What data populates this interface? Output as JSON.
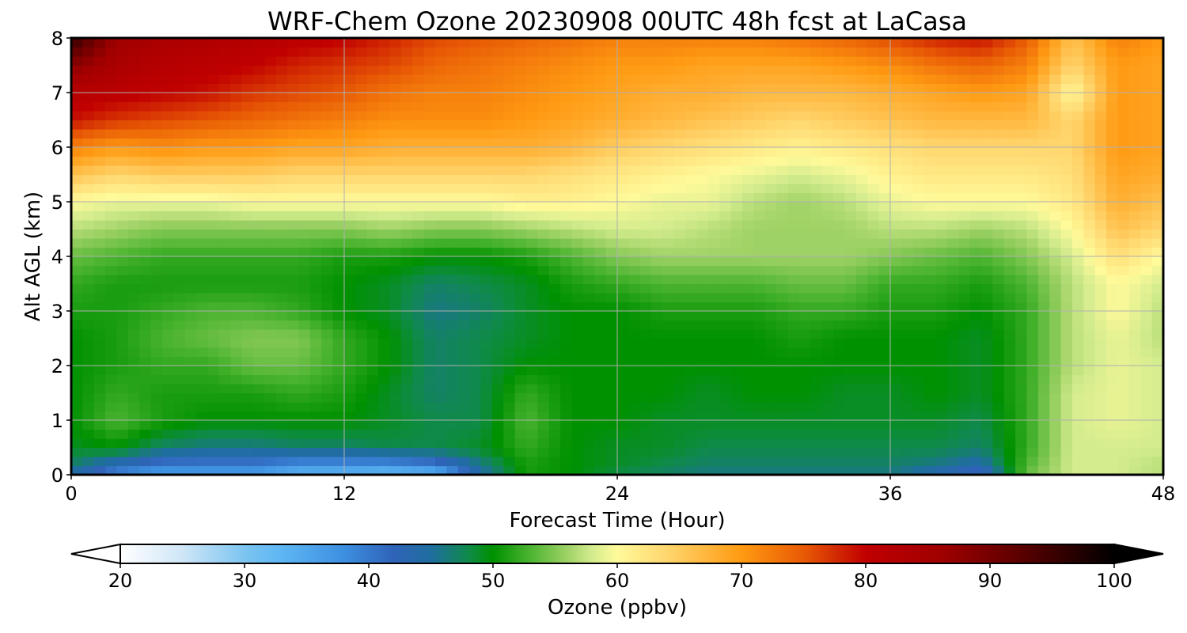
{
  "chart_data": {
    "type": "heatmap",
    "title": "WRF-Chem Ozone  20230908 00UTC 48h fcst at LaCasa",
    "xlabel": "Forecast Time (Hour)",
    "ylabel": "Alt AGL (km)",
    "xlim": [
      0,
      48
    ],
    "ylim": [
      0,
      8
    ],
    "xticks": [
      0,
      12,
      24,
      36,
      48
    ],
    "yticks": [
      0,
      1,
      2,
      3,
      4,
      5,
      6,
      7,
      8
    ],
    "grid": true,
    "colorbar": {
      "label": "Ozone  (ppbv)",
      "min": 20,
      "max": 100,
      "ticks": [
        20,
        30,
        40,
        50,
        60,
        70,
        80,
        90,
        100
      ],
      "extend": "both",
      "orientation": "horizontal",
      "location": "bottom",
      "colors": [
        {
          "v": 20,
          "c": "#ffffff"
        },
        {
          "v": 25,
          "c": "#cfe6f7"
        },
        {
          "v": 30,
          "c": "#7cc4f0"
        },
        {
          "v": 33,
          "c": "#5db6f3"
        },
        {
          "v": 38,
          "c": "#3d8fe0"
        },
        {
          "v": 42,
          "c": "#2f63b8"
        },
        {
          "v": 45,
          "c": "#1f6ea0"
        },
        {
          "v": 48,
          "c": "#0f8a4a"
        },
        {
          "v": 50,
          "c": "#009100"
        },
        {
          "v": 53,
          "c": "#4cb430"
        },
        {
          "v": 56,
          "c": "#9fd266"
        },
        {
          "v": 58,
          "c": "#d4ec8e"
        },
        {
          "v": 60,
          "c": "#fffa9a"
        },
        {
          "v": 64,
          "c": "#ffd66e"
        },
        {
          "v": 70,
          "c": "#ff9a12"
        },
        {
          "v": 75,
          "c": "#e85a05"
        },
        {
          "v": 80,
          "c": "#c00000"
        },
        {
          "v": 86,
          "c": "#a00000"
        },
        {
          "v": 92,
          "c": "#600000"
        },
        {
          "v": 100,
          "c": "#000000"
        }
      ]
    },
    "x": [
      0,
      2,
      4,
      6,
      8,
      10,
      12,
      14,
      16,
      18,
      20,
      22,
      24,
      26,
      28,
      30,
      32,
      34,
      36,
      38,
      40,
      42,
      44,
      46,
      48
    ],
    "y": [
      0,
      0.2,
      0.5,
      1,
      1.5,
      2,
      2.5,
      3,
      3.5,
      4,
      4.5,
      5,
      5.5,
      6,
      6.5,
      7,
      7.5,
      8
    ],
    "z": [
      [
        44,
        38,
        36,
        36,
        36,
        33,
        33,
        32,
        33,
        44,
        51,
        50,
        48,
        47,
        46,
        46,
        46,
        46,
        46,
        43,
        40,
        54,
        58,
        58,
        57
      ],
      [
        47,
        43,
        40,
        40,
        40,
        38,
        38,
        38,
        40,
        46,
        51,
        50,
        49,
        48,
        47,
        47,
        47,
        47,
        47,
        46,
        44,
        53,
        58,
        58,
        57
      ],
      [
        49,
        50,
        47,
        46,
        46,
        47,
        47,
        48,
        48,
        49,
        52,
        50,
        49,
        49,
        48,
        48,
        48,
        48,
        48,
        48,
        47,
        52,
        58,
        58,
        58
      ],
      [
        50,
        53,
        51,
        50,
        50,
        50,
        50,
        49,
        48,
        48,
        53,
        50,
        50,
        49,
        49,
        49,
        49,
        49,
        49,
        49,
        48,
        52,
        58,
        59,
        58
      ],
      [
        50,
        52,
        51,
        51,
        51,
        52,
        51,
        49,
        47,
        48,
        52,
        50,
        50,
        50,
        49,
        50,
        50,
        49,
        49,
        50,
        49,
        52,
        58,
        59,
        58
      ],
      [
        50,
        51,
        52,
        52,
        54,
        54,
        52,
        50,
        47,
        48,
        50,
        50,
        50,
        50,
        50,
        50,
        50,
        50,
        50,
        50,
        49,
        52,
        57,
        59,
        58
      ],
      [
        50,
        51,
        53,
        54,
        55,
        55,
        52,
        50,
        47,
        48,
        49,
        50,
        50,
        50,
        50,
        50,
        51,
        50,
        50,
        50,
        49,
        52,
        57,
        59,
        57
      ],
      [
        51,
        51,
        52,
        53,
        53,
        52,
        50,
        49,
        46,
        47,
        49,
        50,
        50,
        51,
        51,
        51,
        52,
        52,
        51,
        51,
        50,
        52,
        57,
        60,
        57
      ],
      [
        52,
        51,
        51,
        51,
        51,
        51,
        50,
        49,
        47,
        48,
        49,
        51,
        52,
        53,
        53,
        53,
        54,
        54,
        52,
        52,
        51,
        53,
        57,
        60,
        58
      ],
      [
        54,
        53,
        52,
        52,
        52,
        52,
        51,
        51,
        50,
        50,
        51,
        53,
        55,
        56,
        56,
        56,
        56,
        56,
        55,
        54,
        53,
        55,
        58,
        63,
        60
      ],
      [
        57,
        56,
        55,
        55,
        55,
        55,
        55,
        56,
        55,
        55,
        56,
        57,
        58,
        58,
        57,
        56,
        56,
        56,
        57,
        57,
        56,
        57,
        60,
        66,
        64
      ],
      [
        60,
        59,
        59,
        59,
        60,
        60,
        60,
        60,
        60,
        60,
        61,
        61,
        60,
        59,
        59,
        57,
        56,
        57,
        59,
        60,
        60,
        60,
        62,
        68,
        66
      ],
      [
        66,
        64,
        65,
        65,
        65,
        64,
        64,
        64,
        64,
        64,
        64,
        63,
        62,
        61,
        60,
        59,
        58,
        59,
        61,
        62,
        62,
        62,
        63,
        69,
        68
      ],
      [
        72,
        70,
        71,
        70,
        70,
        69,
        69,
        68,
        68,
        68,
        68,
        67,
        65,
        64,
        63,
        62,
        61,
        62,
        63,
        64,
        64,
        64,
        64,
        70,
        69
      ],
      [
        79,
        77,
        76,
        75,
        74,
        73,
        72,
        71,
        71,
        71,
        70,
        69,
        68,
        67,
        66,
        65,
        64,
        65,
        66,
        67,
        67,
        67,
        64,
        70,
        69
      ],
      [
        82,
        81,
        80,
        79,
        77,
        76,
        75,
        73,
        72,
        72,
        71,
        70,
        69,
        68,
        68,
        67,
        67,
        67,
        68,
        69,
        70,
        69,
        60,
        70,
        69
      ],
      [
        88,
        84,
        82,
        81,
        80,
        78,
        77,
        76,
        74,
        73,
        72,
        71,
        70,
        70,
        69,
        69,
        69,
        70,
        71,
        73,
        74,
        72,
        64,
        70,
        69
      ],
      [
        96,
        86,
        84,
        83,
        82,
        81,
        80,
        78,
        76,
        75,
        74,
        73,
        72,
        72,
        72,
        72,
        73,
        74,
        76,
        78,
        79,
        75,
        66,
        72,
        70
      ]
    ]
  }
}
